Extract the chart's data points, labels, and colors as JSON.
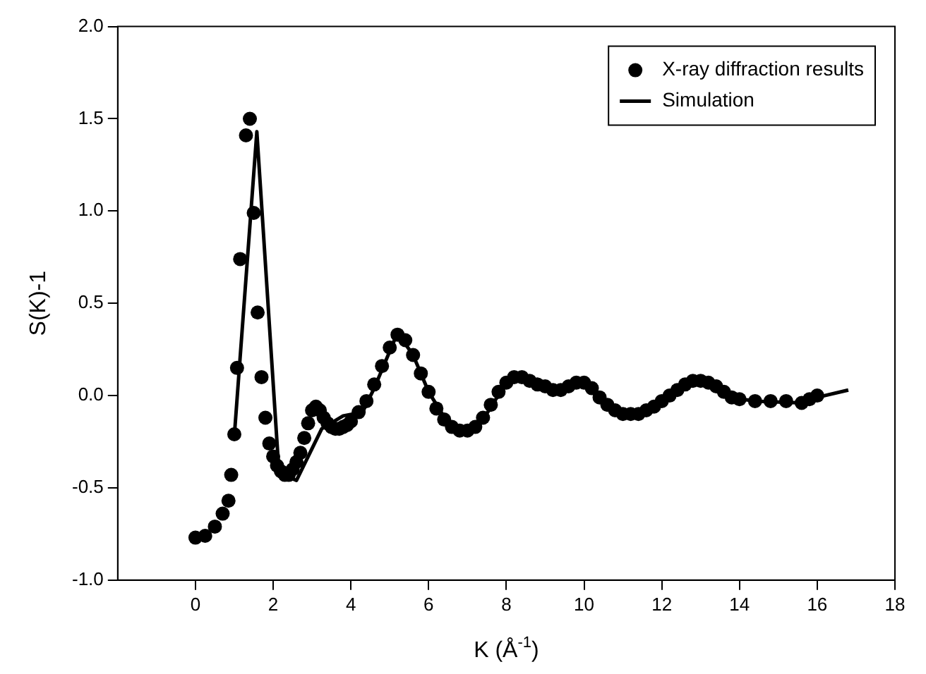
{
  "chart_data": {
    "type": "scatter",
    "xlabel": "K (Å$^{-1}$)",
    "ylabel": "S(K)-1",
    "xlim": [
      -2,
      18
    ],
    "xticks": [
      0,
      2,
      4,
      6,
      8,
      10,
      12,
      14,
      16,
      18
    ],
    "ylim": [
      -1,
      2
    ],
    "yticks": [
      {
        "value": -1,
        "label": "-1.0"
      },
      {
        "value": -0.5,
        "label": "-0.5"
      },
      {
        "value": 0,
        "label": "0.0"
      },
      {
        "value": 0.5,
        "label": "0.5"
      },
      {
        "value": 1,
        "label": "1.0"
      },
      {
        "value": 1.5,
        "label": "1.5"
      },
      {
        "value": 2,
        "label": "2.0"
      }
    ],
    "grid": false,
    "legend": "top right",
    "marker": "circle",
    "series": [
      {
        "name": "X-ray diffraction results",
        "color": "#000000",
        "x": [
          0,
          0.25,
          0.5,
          0.7,
          0.85,
          0.92,
          1.0,
          1.07,
          1.15,
          1.3,
          1.4,
          1.5,
          1.6,
          1.7,
          1.8,
          1.9,
          2.0,
          2.1,
          2.2,
          2.3,
          2.4,
          2.5,
          2.6,
          2.7,
          2.8,
          2.9,
          3.0,
          3.1,
          3.2,
          3.3,
          3.4,
          3.5,
          3.6,
          3.7,
          3.8,
          3.9,
          4.0,
          4.2,
          4.4,
          4.6,
          4.8,
          5.0,
          5.2,
          5.4,
          5.6,
          5.8,
          6.0,
          6.2,
          6.4,
          6.6,
          6.8,
          7.0,
          7.2,
          7.4,
          7.6,
          7.8,
          8.0,
          8.2,
          8.4,
          8.6,
          8.8,
          9.0,
          9.2,
          9.4,
          9.6,
          9.8,
          10.0,
          10.2,
          10.4,
          10.6,
          10.8,
          11.0,
          11.2,
          11.4,
          11.6,
          11.8,
          12.0,
          12.2,
          12.4,
          12.6,
          12.8,
          13.0,
          13.2,
          13.4,
          13.6,
          13.8,
          14.0,
          14.4,
          14.8,
          15.2,
          15.6,
          15.8,
          16.0
        ],
        "values": [
          -0.77,
          -0.76,
          -0.71,
          -0.64,
          -0.57,
          -0.43,
          -0.21,
          0.15,
          0.74,
          1.41,
          1.5,
          0.99,
          0.45,
          0.1,
          -0.12,
          -0.26,
          -0.33,
          -0.38,
          -0.41,
          -0.43,
          -0.43,
          -0.4,
          -0.36,
          -0.31,
          -0.23,
          -0.15,
          -0.08,
          -0.06,
          -0.08,
          -0.12,
          -0.15,
          -0.17,
          -0.18,
          -0.18,
          -0.17,
          -0.16,
          -0.14,
          -0.09,
          -0.03,
          0.06,
          0.16,
          0.26,
          0.33,
          0.3,
          0.22,
          0.12,
          0.02,
          -0.07,
          -0.13,
          -0.17,
          -0.19,
          -0.19,
          -0.17,
          -0.12,
          -0.05,
          0.02,
          0.07,
          0.1,
          0.1,
          0.08,
          0.06,
          0.05,
          0.03,
          0.03,
          0.05,
          0.07,
          0.07,
          0.04,
          -0.01,
          -0.05,
          -0.08,
          -0.1,
          -0.1,
          -0.1,
          -0.08,
          -0.06,
          -0.03,
          0.0,
          0.03,
          0.06,
          0.08,
          0.08,
          0.07,
          0.05,
          0.02,
          -0.01,
          -0.02,
          -0.03,
          -0.03,
          -0.03,
          -0.04,
          -0.02,
          0.0
        ]
      },
      {
        "name": "Simulation",
        "type": "line",
        "color": "#000000",
        "marker": "none",
        "line_style": "solid",
        "x": [
          1.0,
          1.58,
          2.15,
          2.6,
          3.25,
          3.8,
          4.3,
          4.6,
          5.0,
          5.2,
          5.6,
          6.0,
          6.5,
          7.0,
          7.4,
          8.0,
          8.4,
          9.2,
          10.0,
          10.6,
          11.2,
          12.0,
          13.0,
          13.8,
          14.4,
          15.6,
          16.0,
          16.8
        ],
        "values": [
          -0.22,
          1.43,
          -0.42,
          -0.46,
          -0.18,
          -0.11,
          -0.09,
          0.04,
          0.24,
          0.34,
          0.22,
          0.02,
          -0.15,
          -0.19,
          -0.13,
          0.07,
          0.1,
          0.03,
          0.07,
          -0.05,
          -0.1,
          -0.03,
          0.08,
          -0.01,
          -0.03,
          -0.04,
          -0.01,
          0.03
        ]
      }
    ]
  }
}
